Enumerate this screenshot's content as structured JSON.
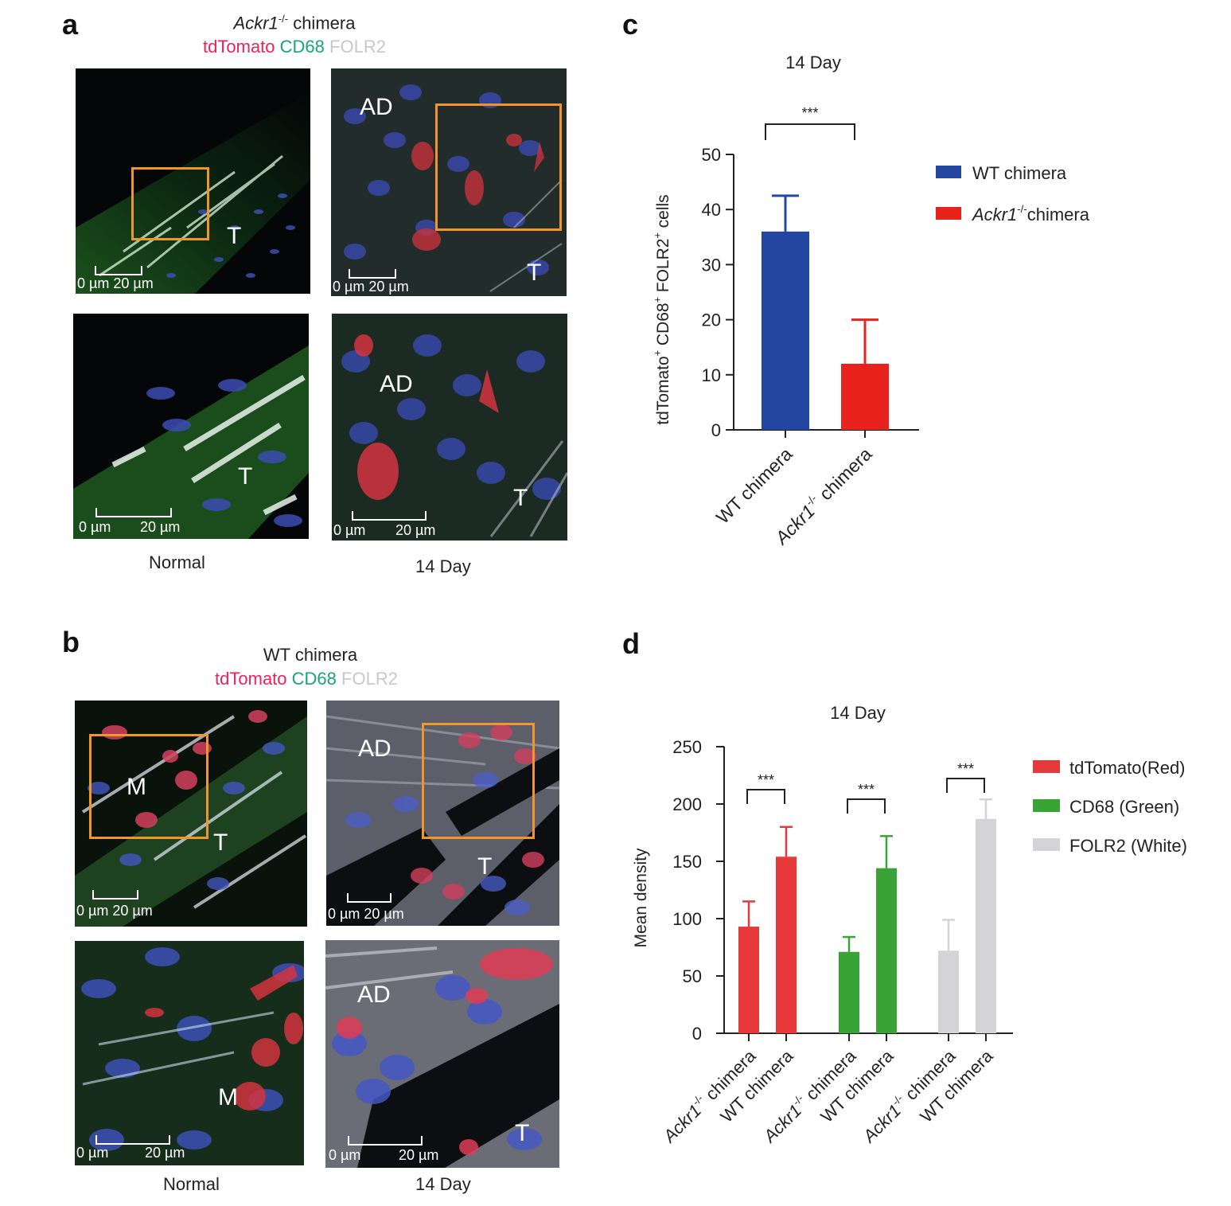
{
  "panels": {
    "a": {
      "letter": "a",
      "title_italic": "Ackr1",
      "title_sup": "-/-",
      "title_rest": " chimera",
      "stain": {
        "tdtomato": "tdTomato",
        "cd68": "CD68",
        "folr2": "FOLR2"
      },
      "captions": [
        "Normal",
        "14 Day"
      ],
      "images": [
        {
          "labels": [
            "T"
          ],
          "scale": "0 µm 20 µm"
        },
        {
          "labels": [
            "AD",
            "T"
          ],
          "scale": "0 µm 20 µm"
        },
        {
          "labels": [
            "T"
          ],
          "scale_start": "0 µm",
          "scale_end": "20 µm"
        },
        {
          "labels": [
            "AD",
            "T"
          ],
          "scale_start": "0 µm",
          "scale_end": "20 µm"
        }
      ]
    },
    "b": {
      "letter": "b",
      "title": "WT chimera",
      "stain": {
        "tdtomato": "tdTomato",
        "cd68": "CD68",
        "folr2": "FOLR2"
      },
      "captions": [
        "Normal",
        "14 Day"
      ],
      "images": [
        {
          "labels": [
            "M",
            "T"
          ],
          "scale": "0 µm 20 µm"
        },
        {
          "labels": [
            "AD",
            "T"
          ],
          "scale": "0 µm 20 µm"
        },
        {
          "labels": [
            "M"
          ],
          "scale_start": "0 µm",
          "scale_end": "20 µm"
        },
        {
          "labels": [
            "AD",
            "T"
          ],
          "scale_start": "0 µm",
          "scale_end": "20 µm"
        }
      ]
    },
    "c": {
      "letter": "c"
    },
    "d": {
      "letter": "d"
    }
  },
  "colors": {
    "tdtomato_text": "#e8245a",
    "cd68_text": "#1aa37a",
    "folr2_text": "#c8c8c8",
    "wt_blue": "#2347a0",
    "ackr1_red": "#e8221c",
    "td_red": "#e8393a",
    "cd68_green": "#3aa336",
    "folr2_grey": "#d4d4d6",
    "orange_box": "#f0962a"
  },
  "chart_data": [
    {
      "type": "bar",
      "title": "14 Day",
      "ylabel": "tdTomato+ CD68+ FOLR2+ cells",
      "ylabel_parts": [
        {
          "t": "tdTomato"
        },
        {
          "t": "+",
          "sup": true
        },
        {
          "t": " CD68"
        },
        {
          "t": "+",
          "sup": true
        },
        {
          "t": " FOLR2"
        },
        {
          "t": "+",
          "sup": true
        },
        {
          "t": "  cells"
        }
      ],
      "ylim": [
        0,
        50
      ],
      "yticks": [
        0,
        10,
        20,
        30,
        40,
        50
      ],
      "categories": [
        "WT chimera",
        "Ackr1-/- chimera"
      ],
      "category_labels": [
        [
          {
            "t": "WT chimera"
          }
        ],
        [
          {
            "t": "Ackr1",
            "it": true
          },
          {
            "t": "-/-",
            "sup": true
          },
          {
            "t": " chimera"
          }
        ]
      ],
      "values": [
        36,
        12
      ],
      "errors": [
        6.5,
        8
      ],
      "bar_colors": [
        "#2347a0",
        "#e8221c"
      ],
      "significance": [
        {
          "pair": [
            0,
            1
          ],
          "label": "***"
        }
      ],
      "legend": [
        {
          "parts": [
            {
              "t": "WT chimera"
            }
          ],
          "color": "#2347a0"
        },
        {
          "parts": [
            {
              "t": "Ackr1",
              "it": true
            },
            {
              "t": "-/-",
              "sup": true
            },
            {
              "t": "chimera"
            }
          ],
          "color": "#e8221c"
        }
      ],
      "legend_position": "right"
    },
    {
      "type": "bar",
      "title": "14 Day",
      "ylabel": "Mean density",
      "ylim": [
        0,
        250
      ],
      "yticks": [
        0,
        50,
        100,
        150,
        200,
        250
      ],
      "groups": [
        "tdTomato(Red)",
        "CD68 (Green)",
        "FOLR2 (White)"
      ],
      "categories": [
        "Ackr1-/- chimera",
        "WT chimera"
      ],
      "category_labels": [
        [
          {
            "t": "Ackr1",
            "it": true
          },
          {
            "t": "-/-",
            "sup": true
          },
          {
            "t": " chimera"
          }
        ],
        [
          {
            "t": "WT chimera"
          }
        ]
      ],
      "series": [
        {
          "name": "tdTomato(Red)",
          "values": [
            93,
            154
          ],
          "errors": [
            22,
            26
          ],
          "color": "#e8393a"
        },
        {
          "name": "CD68 (Green)",
          "values": [
            71,
            144
          ],
          "errors": [
            13,
            28
          ],
          "color": "#3aa336"
        },
        {
          "name": "FOLR2 (White)",
          "values": [
            72,
            187
          ],
          "errors": [
            27,
            17
          ],
          "color": "#d4d4d6"
        }
      ],
      "significance": [
        {
          "group": 0,
          "label": "***"
        },
        {
          "group": 1,
          "label": "***"
        },
        {
          "group": 2,
          "label": "***"
        }
      ],
      "legend_position": "right"
    }
  ]
}
